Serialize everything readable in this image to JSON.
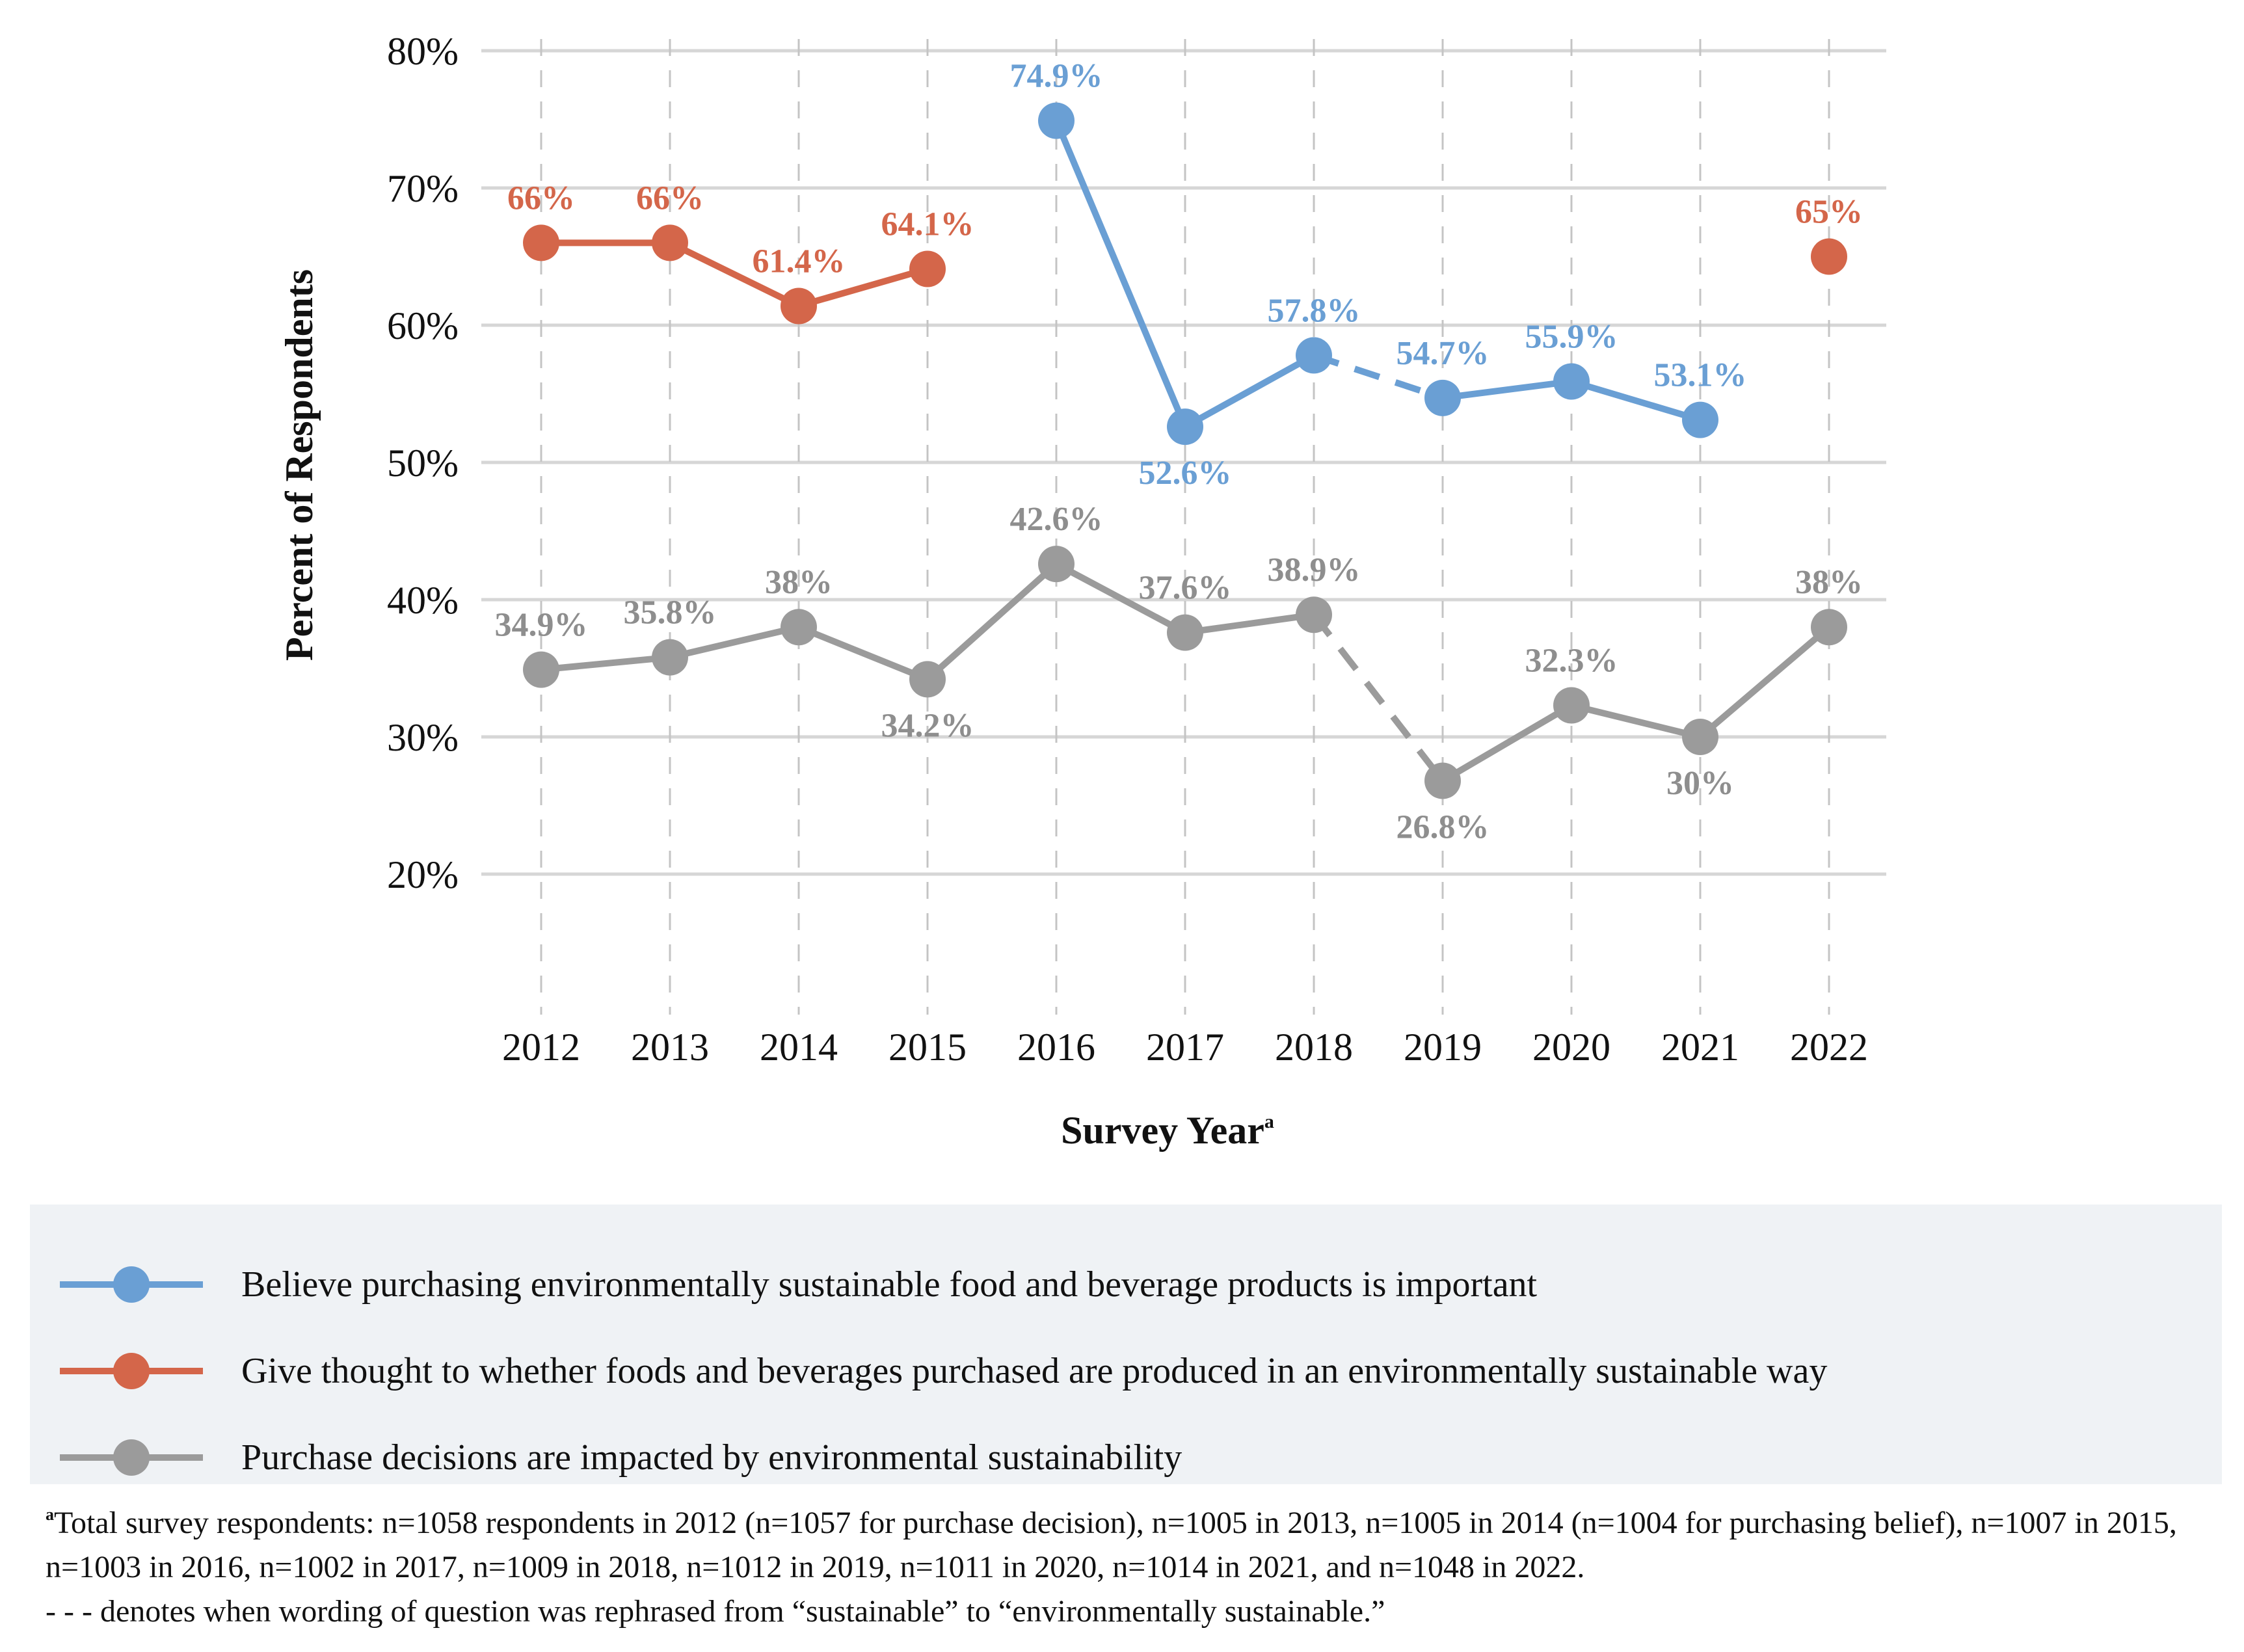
{
  "chart_data": {
    "type": "line",
    "xlabel": "Survey Year",
    "xlabel_sup": "a",
    "ylabel": "Percent of Respondents",
    "ylim": [
      10,
      80
    ],
    "yticks": [
      "20%",
      "30%",
      "40%",
      "50%",
      "60%",
      "70%",
      "80%"
    ],
    "ytick_values": [
      20,
      30,
      40,
      50,
      60,
      70,
      80
    ],
    "categories": [
      "2012",
      "2013",
      "2014",
      "2015",
      "2016",
      "2017",
      "2018",
      "2019",
      "2020",
      "2021",
      "2022"
    ],
    "grid": true,
    "series": [
      {
        "name": "Believe purchasing environmentally sustainable food and beverage products is important",
        "color": "#6a9fd4",
        "values": [
          null,
          null,
          null,
          null,
          74.9,
          52.6,
          57.8,
          54.7,
          55.9,
          53.1,
          null
        ],
        "labels": [
          "",
          "",
          "",
          "",
          "74.9%",
          "52.6%",
          "57.8%",
          "54.7%",
          "55.9%",
          "53.1%",
          ""
        ],
        "dashed_segment": [
          "2018",
          "2019"
        ]
      },
      {
        "name": "Give thought to whether foods and beverages purchased are produced in an environmentally sustainable way",
        "color": "#d4664a",
        "values": [
          66,
          66,
          61.4,
          64.1,
          null,
          null,
          null,
          null,
          null,
          null,
          65
        ],
        "labels": [
          "66%",
          "66%",
          "61.4%",
          "64.1%",
          "",
          "",
          "",
          "",
          "",
          "",
          "65%"
        ]
      },
      {
        "name": "Purchase decisions are impacted by environmental sustainability",
        "color": "#9b9b9b",
        "label_color": "#8e8e8e",
        "values": [
          34.9,
          35.8,
          38,
          34.2,
          42.6,
          37.6,
          38.9,
          26.8,
          32.3,
          30,
          38
        ],
        "labels": [
          "34.9%",
          "35.8%",
          "38%",
          "34.2%",
          "42.6%",
          "37.6%",
          "38.9%",
          "26.8%",
          "32.3%",
          "30%",
          "38%"
        ],
        "dashed_segment": [
          "2018",
          "2019"
        ]
      }
    ]
  },
  "legend": {
    "items": [
      {
        "label": "Believe purchasing environmentally sustainable food and beverage products is important",
        "color": "#6a9fd4"
      },
      {
        "label": "Give thought to whether foods and beverages purchased are produced in an environmentally sustainable way",
        "color": "#d4664a"
      },
      {
        "label": "Purchase decisions are impacted by environmental sustainability",
        "color": "#9b9b9b"
      }
    ]
  },
  "footnote": {
    "marker": "a",
    "text": "Total survey respondents: n=1058 respondents in 2012 (n=1057 for purchase decision), n=1005 in 2013, n=1005 in 2014 (n=1004 for purchasing belief), n=1007 in 2015, n=1003 in 2016, n=1002 in 2017, n=1009 in 2018, n=1012 in 2019, n=1011 in 2020, n=1014 in 2021, and n=1048 in 2022.",
    "dash_note": "- - - denotes when wording of question was rephrased from “sustainable” to “environmentally sustainable.”"
  }
}
